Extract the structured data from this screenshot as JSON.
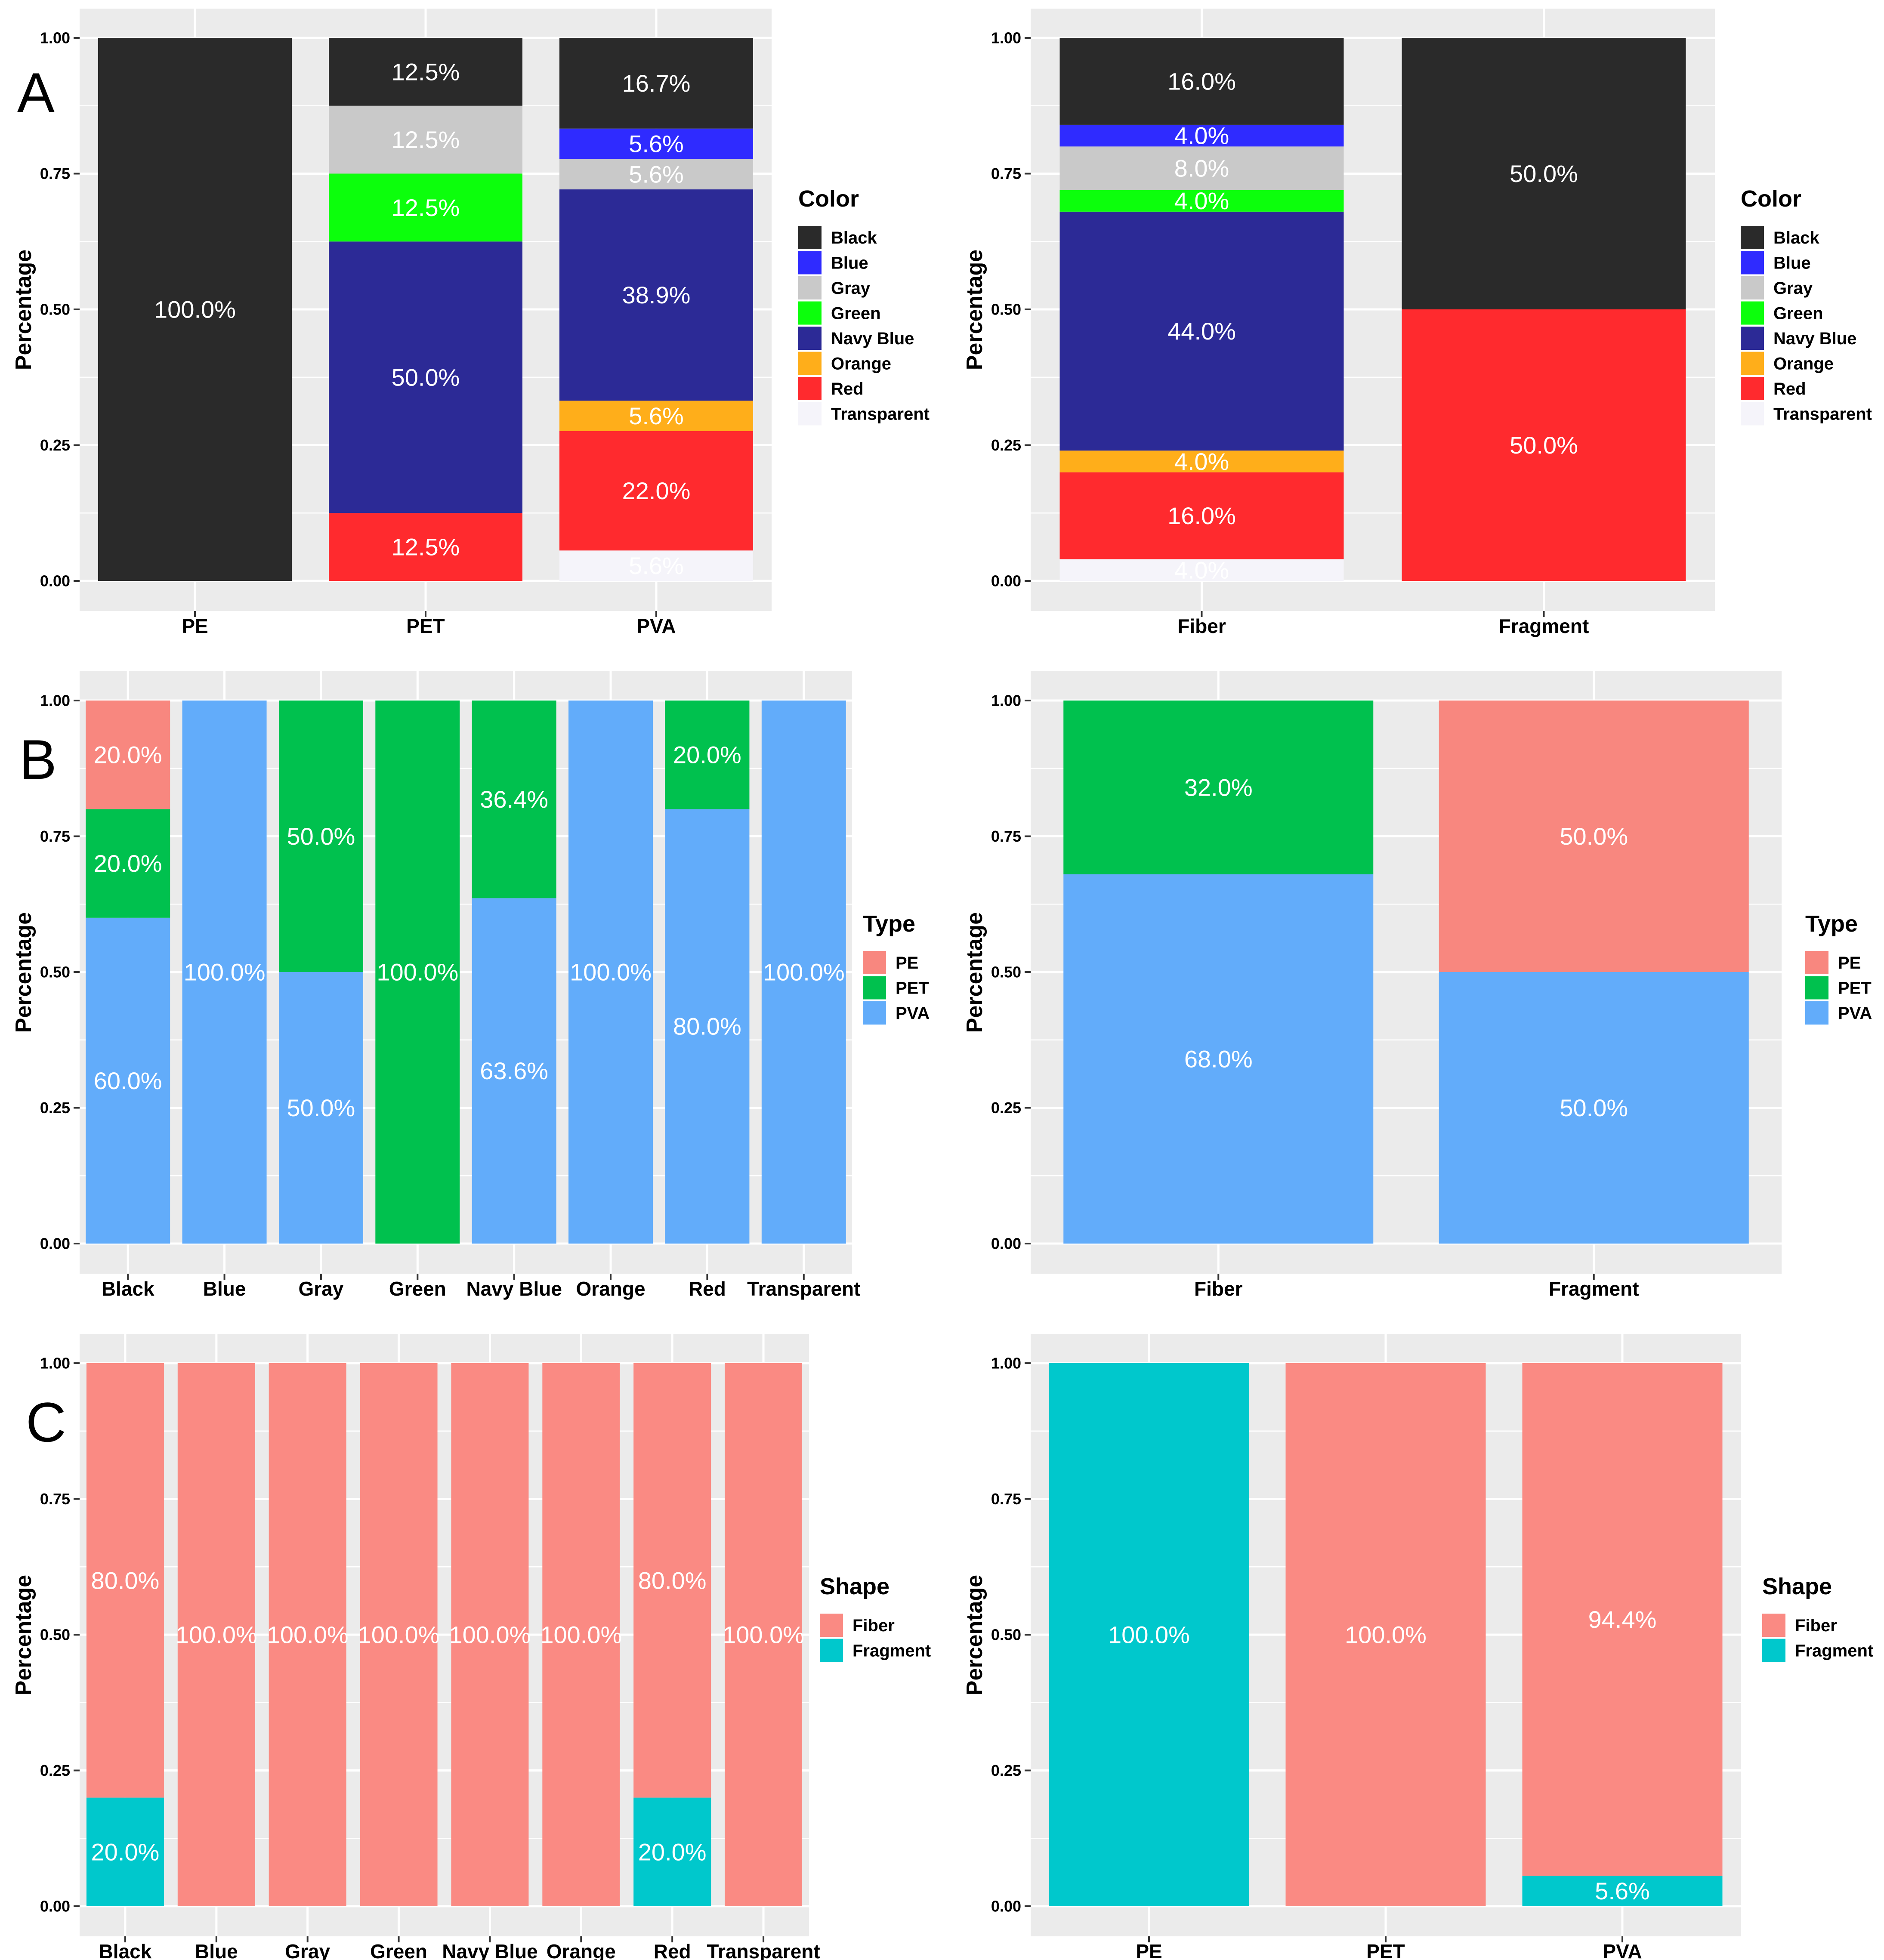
{
  "panel_labels": [
    "A",
    "B",
    "C"
  ],
  "colors": {
    "panel_bg": "#EBEBEB",
    "grid": "#FFFFFF",
    "text": "#000000",
    "segment_label": "#FFFFFF"
  },
  "palettes": {
    "color": {
      "Black": "#2A2A2A",
      "Blue": "#2F2BFF",
      "Gray": "#C9C9C9",
      "Green": "#0CFF0C",
      "Navy Blue": "#2C2A96",
      "Orange": "#FFAE1A",
      "Red": "#FF2A2E",
      "Transparent": "#F5F4FA"
    },
    "type": {
      "PE": "#F8877F",
      "PET": "#00C14E",
      "PVA": "#62ACFA"
    },
    "shape": {
      "Fiber": "#FA8A83",
      "Fragment": "#00C8CC"
    }
  },
  "chart_data": [
    {
      "type": "bar",
      "stacked": true,
      "panel": "A-left",
      "ylabel": "Percentage",
      "ylim": [
        0,
        1
      ],
      "yticks": [
        "0.00",
        "0.25",
        "0.50",
        "0.75",
        "1.00"
      ],
      "categories": [
        "PE",
        "PET",
        "PVA"
      ],
      "legend": {
        "title": "Color",
        "palette": "color",
        "entries": [
          "Black",
          "Blue",
          "Gray",
          "Green",
          "Navy Blue",
          "Orange",
          "Red",
          "Transparent"
        ]
      },
      "series": [
        {
          "name": "Black",
          "values": [
            1.0,
            0.125,
            0.167
          ],
          "labels": [
            "100.0%",
            "12.5%",
            "16.7%"
          ]
        },
        {
          "name": "Blue",
          "values": [
            0,
            0,
            0.056
          ],
          "labels": [
            "",
            "",
            "5.6%"
          ]
        },
        {
          "name": "Gray",
          "values": [
            0,
            0.125,
            0.056
          ],
          "labels": [
            "",
            "12.5%",
            "5.6%"
          ]
        },
        {
          "name": "Green",
          "values": [
            0,
            0.125,
            0
          ],
          "labels": [
            "",
            "12.5%",
            ""
          ]
        },
        {
          "name": "Navy Blue",
          "values": [
            0,
            0.5,
            0.389
          ],
          "labels": [
            "",
            "50.0%",
            "38.9%"
          ]
        },
        {
          "name": "Orange",
          "values": [
            0,
            0,
            0.056
          ],
          "labels": [
            "",
            "",
            "5.6%"
          ]
        },
        {
          "name": "Red",
          "values": [
            0,
            0.125,
            0.22
          ],
          "labels": [
            "",
            "12.5%",
            "22.0%"
          ]
        },
        {
          "name": "Transparent",
          "values": [
            0,
            0,
            0.056
          ],
          "labels": [
            "",
            "",
            "5.6%"
          ]
        }
      ]
    },
    {
      "type": "bar",
      "stacked": true,
      "panel": "A-right",
      "ylabel": "Percentage",
      "ylim": [
        0,
        1
      ],
      "yticks": [
        "0.00",
        "0.25",
        "0.50",
        "0.75",
        "1.00"
      ],
      "categories": [
        "Fiber",
        "Fragment"
      ],
      "legend": {
        "title": "Color",
        "palette": "color",
        "entries": [
          "Black",
          "Blue",
          "Gray",
          "Green",
          "Navy Blue",
          "Orange",
          "Red",
          "Transparent"
        ]
      },
      "series": [
        {
          "name": "Black",
          "values": [
            0.16,
            0.5
          ],
          "labels": [
            "16.0%",
            "50.0%"
          ]
        },
        {
          "name": "Blue",
          "values": [
            0.04,
            0
          ],
          "labels": [
            "4.0%",
            ""
          ]
        },
        {
          "name": "Gray",
          "values": [
            0.08,
            0
          ],
          "labels": [
            "8.0%",
            ""
          ]
        },
        {
          "name": "Green",
          "values": [
            0.04,
            0
          ],
          "labels": [
            "4.0%",
            ""
          ]
        },
        {
          "name": "Navy Blue",
          "values": [
            0.44,
            0
          ],
          "labels": [
            "44.0%",
            ""
          ]
        },
        {
          "name": "Orange",
          "values": [
            0.04,
            0
          ],
          "labels": [
            "4.0%",
            ""
          ]
        },
        {
          "name": "Red",
          "values": [
            0.16,
            0.5
          ],
          "labels": [
            "16.0%",
            "50.0%"
          ]
        },
        {
          "name": "Transparent",
          "values": [
            0.04,
            0
          ],
          "labels": [
            "4.0%",
            ""
          ]
        }
      ]
    },
    {
      "type": "bar",
      "stacked": true,
      "panel": "B-left",
      "ylabel": "Percentage",
      "ylim": [
        0,
        1
      ],
      "yticks": [
        "0.00",
        "0.25",
        "0.50",
        "0.75",
        "1.00"
      ],
      "categories": [
        "Black",
        "Blue",
        "Gray",
        "Green",
        "Navy Blue",
        "Orange",
        "Red",
        "Transparent"
      ],
      "legend": {
        "title": "Type",
        "palette": "type",
        "entries": [
          "PE",
          "PET",
          "PVA"
        ]
      },
      "series": [
        {
          "name": "PE",
          "values": [
            0.2,
            0,
            0,
            0,
            0,
            0,
            0,
            0
          ],
          "labels": [
            "20.0%",
            "",
            "",
            "",
            "",
            "",
            "",
            ""
          ]
        },
        {
          "name": "PET",
          "values": [
            0.2,
            0,
            0.5,
            1.0,
            0.364,
            0,
            0.2,
            0
          ],
          "labels": [
            "20.0%",
            "",
            "50.0%",
            "100.0%",
            "36.4%",
            "",
            "20.0%",
            ""
          ]
        },
        {
          "name": "PVA",
          "values": [
            0.6,
            1.0,
            0.5,
            0,
            0.636,
            1.0,
            0.8,
            1.0
          ],
          "labels": [
            "60.0%",
            "100.0%",
            "50.0%",
            "",
            "63.6%",
            "100.0%",
            "80.0%",
            "100.0%"
          ]
        }
      ]
    },
    {
      "type": "bar",
      "stacked": true,
      "panel": "B-right",
      "ylabel": "Percentage",
      "ylim": [
        0,
        1
      ],
      "yticks": [
        "0.00",
        "0.25",
        "0.50",
        "0.75",
        "1.00"
      ],
      "categories": [
        "Fiber",
        "Fragment"
      ],
      "legend": {
        "title": "Type",
        "palette": "type",
        "entries": [
          "PE",
          "PET",
          "PVA"
        ]
      },
      "series": [
        {
          "name": "PE",
          "values": [
            0,
            0.5
          ],
          "labels": [
            "",
            "50.0%"
          ]
        },
        {
          "name": "PET",
          "values": [
            0.32,
            0
          ],
          "labels": [
            "32.0%",
            ""
          ]
        },
        {
          "name": "PVA",
          "values": [
            0.68,
            0.5
          ],
          "labels": [
            "68.0%",
            "50.0%"
          ]
        }
      ]
    },
    {
      "type": "bar",
      "stacked": true,
      "panel": "C-left",
      "ylabel": "Percentage",
      "ylim": [
        0,
        1
      ],
      "yticks": [
        "0.00",
        "0.25",
        "0.50",
        "0.75",
        "1.00"
      ],
      "categories": [
        "Black",
        "Blue",
        "Gray",
        "Green",
        "Navy Blue",
        "Orange",
        "Red",
        "Transparent"
      ],
      "legend": {
        "title": "Shape",
        "palette": "shape",
        "entries": [
          "Fiber",
          "Fragment"
        ]
      },
      "series": [
        {
          "name": "Fiber",
          "values": [
            0.8,
            1.0,
            1.0,
            1.0,
            1.0,
            1.0,
            0.8,
            1.0
          ],
          "labels": [
            "80.0%",
            "100.0%",
            "100.0%",
            "100.0%",
            "100.0%",
            "100.0%",
            "80.0%",
            "100.0%"
          ]
        },
        {
          "name": "Fragment",
          "values": [
            0.2,
            0,
            0,
            0,
            0,
            0,
            0.2,
            0
          ],
          "labels": [
            "20.0%",
            "",
            "",
            "",
            "",
            "",
            "20.0%",
            ""
          ]
        }
      ]
    },
    {
      "type": "bar",
      "stacked": true,
      "panel": "C-right",
      "ylabel": "Percentage",
      "ylim": [
        0,
        1
      ],
      "yticks": [
        "0.00",
        "0.25",
        "0.50",
        "0.75",
        "1.00"
      ],
      "categories": [
        "PE",
        "PET",
        "PVA"
      ],
      "legend": {
        "title": "Shape",
        "palette": "shape",
        "entries": [
          "Fiber",
          "Fragment"
        ]
      },
      "series": [
        {
          "name": "Fiber",
          "values": [
            0,
            1.0,
            0.944
          ],
          "labels": [
            "",
            "100.0%",
            "94.4%"
          ]
        },
        {
          "name": "Fragment",
          "values": [
            1.0,
            0,
            0.056
          ],
          "labels": [
            "100.0%",
            "",
            "5.6%"
          ]
        }
      ]
    }
  ]
}
